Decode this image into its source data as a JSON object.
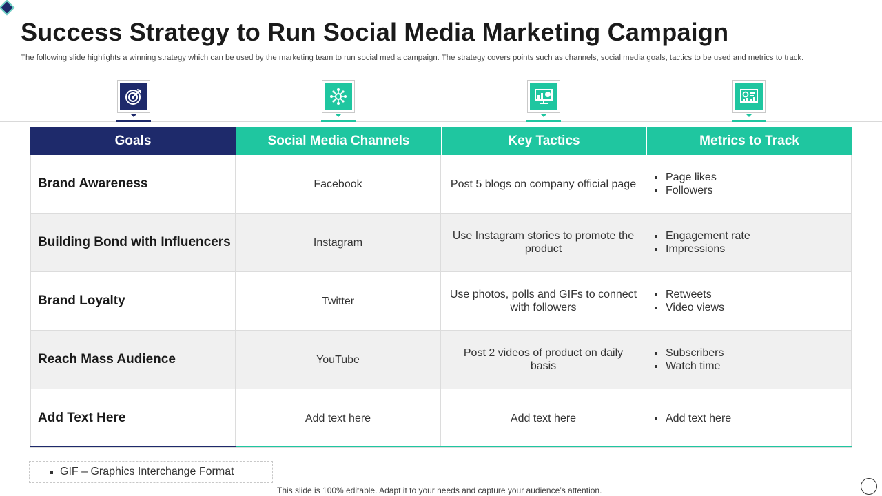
{
  "title": "Success Strategy to Run Social Media Marketing Campaign",
  "subtitle": "The following slide highlights a winning strategy which can be used by the marketing team to run social media campaign. The strategy covers points such as channels, social media goals, tactics to be used and metrics to track.",
  "icons": [
    "target-icon",
    "network-icon",
    "presentation-icon",
    "dashboard-icon"
  ],
  "colors": {
    "navy": "#1e2a6b",
    "teal": "#1fc6a0",
    "row_shade": "#f0f0f0"
  },
  "table": {
    "headers": [
      "Goals",
      "Social Media Channels",
      "Key Tactics",
      "Metrics to Track"
    ],
    "rows": [
      {
        "goal": "Brand Awareness",
        "channel": "Facebook",
        "tactic": "Post 5 blogs on company official page",
        "metrics": [
          "Page likes",
          "Followers"
        ]
      },
      {
        "goal": "Building Bond with Influencers",
        "channel": "Instagram",
        "tactic": "Use Instagram stories to promote the product",
        "metrics": [
          "Engagement rate",
          "Impressions"
        ]
      },
      {
        "goal": "Brand Loyalty",
        "channel": "Twitter",
        "tactic": "Use photos, polls and GIFs to connect with followers",
        "metrics": [
          "Retweets",
          "Video views"
        ]
      },
      {
        "goal": "Reach Mass Audience",
        "channel": "YouTube",
        "tactic": "Post 2 videos of product on daily basis",
        "metrics": [
          "Subscribers",
          "Watch time"
        ]
      },
      {
        "goal": "Add Text Here",
        "channel": "Add text here",
        "tactic": "Add text here",
        "metrics": [
          "Add text here"
        ]
      }
    ]
  },
  "note": "GIF – Graphics Interchange  Format",
  "footer": "This slide is 100% editable. Adapt it to your needs and capture your audience’s attention."
}
